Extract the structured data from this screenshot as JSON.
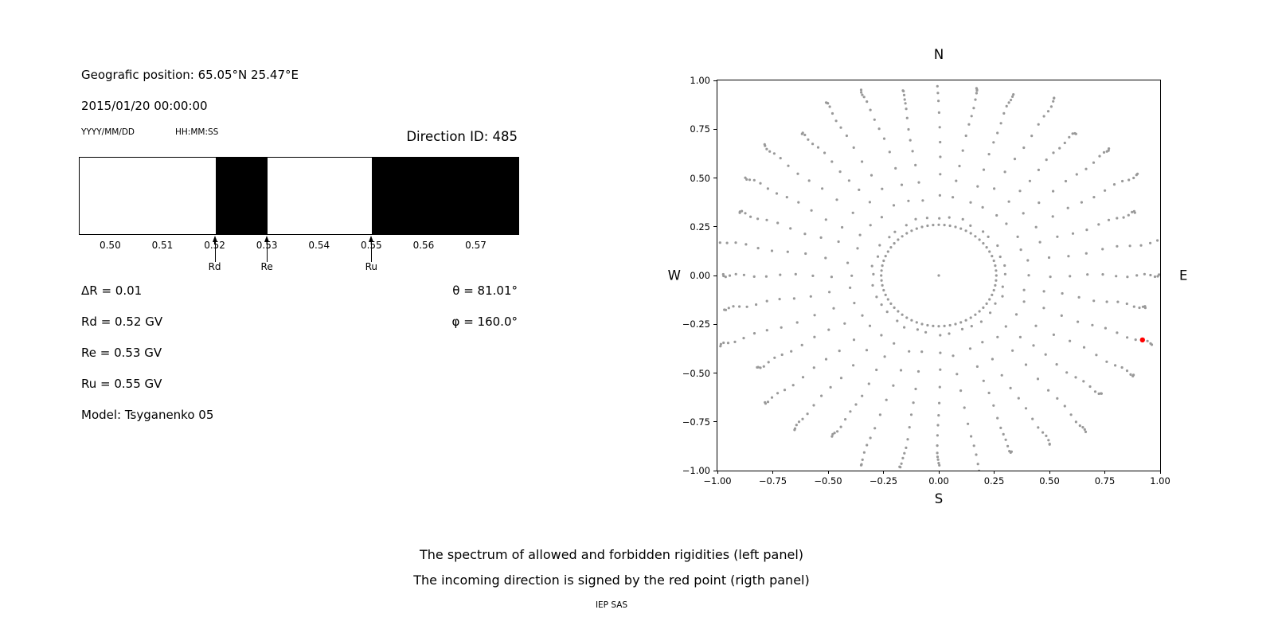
{
  "header": {
    "geo_position": "Geografic position: 65.05°N 25.47°E",
    "datetime": "2015/01/20 00:00:00",
    "date_format": "YYYY/MM/DD",
    "time_format": "HH:MM:SS",
    "direction_id": "Direction ID: 485"
  },
  "params": {
    "delta_r": "ΔR = 0.01",
    "theta": "θ = 81.01°",
    "rd": "Rd = 0.52 GV",
    "phi": "φ = 160.0°",
    "re": "Re = 0.53 GV",
    "ru": "Ru = 0.55 GV",
    "model": "Model: Tsyganenko 05"
  },
  "caption": {
    "line1": "The spectrum of allowed and forbidden rigidities (left panel)",
    "line2": "The incoming direction is signed by the red point (rigth panel)",
    "credit": "IEP SAS"
  },
  "chart_data": [
    {
      "type": "bar",
      "description": "Spectrum of allowed (white) and forbidden (black) rigidities",
      "x_range": [
        0.494,
        0.578
      ],
      "x_tick_values": [
        0.5,
        0.51,
        0.52,
        0.53,
        0.54,
        0.55,
        0.56,
        0.57
      ],
      "x_tick_labels": [
        "0.50",
        "0.51",
        "0.52",
        "0.53",
        "0.54",
        "0.55",
        "0.56",
        "0.57"
      ],
      "forbidden_regions_gv": [
        [
          0.52,
          0.53
        ],
        [
          0.55,
          0.578
        ]
      ],
      "markers": [
        {
          "label": "Rd",
          "value_gv": 0.52
        },
        {
          "label": "Re",
          "value_gv": 0.53
        },
        {
          "label": "Ru",
          "value_gv": 0.55
        }
      ],
      "colors": {
        "forbidden": "#000000",
        "allowed": "#ffffff"
      }
    },
    {
      "type": "scatter",
      "description": "Asymptotic direction map; incoming direction marked by the red point",
      "xlim": [
        -1,
        1
      ],
      "ylim": [
        -1,
        1
      ],
      "x_tick_values": [
        -1,
        -0.75,
        -0.5,
        -0.25,
        0,
        0.25,
        0.5,
        0.75,
        1
      ],
      "x_tick_labels": [
        "−1.00",
        "−0.75",
        "−0.50",
        "−0.25",
        "0.00",
        "0.25",
        "0.50",
        "0.75",
        "1.00"
      ],
      "y_tick_values": [
        1,
        0.75,
        0.5,
        0.25,
        0,
        -0.25,
        -0.5,
        -0.75,
        -1
      ],
      "y_tick_labels": [
        "1.00",
        "0.75",
        "0.50",
        "0.25",
        "0.00",
        "−0.25",
        "−0.50",
        "−0.75",
        "−1.00"
      ],
      "compass_labels": {
        "top": "N",
        "bottom": "S",
        "left": "W",
        "right": "E"
      },
      "dot_color": "#999999",
      "red_point": {
        "x": 0.92,
        "y": -0.33,
        "color": "#ff0000"
      },
      "pattern": {
        "spoke_count": 36,
        "spoke_step_deg": 10,
        "spoke_r_start": 0.3,
        "spoke_r_end": 1.0,
        "points_per_spoke": 14,
        "curvature_deg": 0,
        "inner_ring_radius": 0.26,
        "inner_ring_points": 64,
        "center_point": true
      }
    }
  ]
}
